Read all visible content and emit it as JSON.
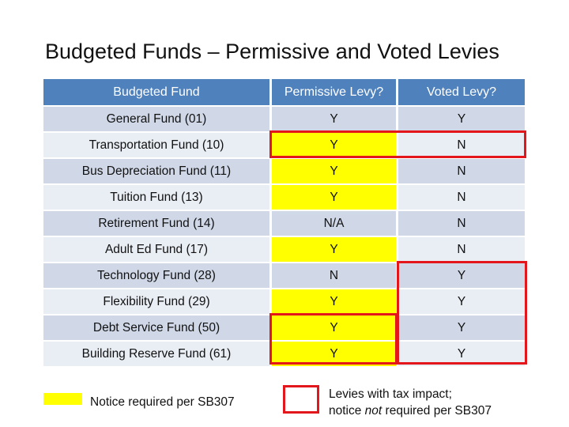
{
  "title": "Budgeted Funds – Permissive and Voted Levies",
  "table": {
    "header": [
      "Budgeted Fund",
      "Permissive Levy?",
      "Voted Levy?"
    ],
    "rows": [
      [
        "General Fund (01)",
        "Y",
        "Y"
      ],
      [
        "Transportation Fund (10)",
        "Y",
        "N"
      ],
      [
        "Bus Depreciation Fund (11)",
        "Y",
        "N"
      ],
      [
        "Tuition Fund (13)",
        "Y",
        "N"
      ],
      [
        "Retirement Fund (14)",
        "N/A",
        "N"
      ],
      [
        "Adult Ed Fund (17)",
        "Y",
        "N"
      ],
      [
        "Technology Fund (28)",
        "N",
        "Y"
      ],
      [
        "Flexibility Fund (29)",
        "Y",
        "Y"
      ],
      [
        "Debt Service Fund (50)",
        "Y",
        "Y"
      ],
      [
        "Building Reserve Fund (61)",
        "Y",
        "Y"
      ]
    ]
  },
  "legend": {
    "yellow": "Notice required per SB307",
    "red": [
      "Levies with tax impact;",
      "notice ",
      "not",
      " required per SB307"
    ]
  }
}
